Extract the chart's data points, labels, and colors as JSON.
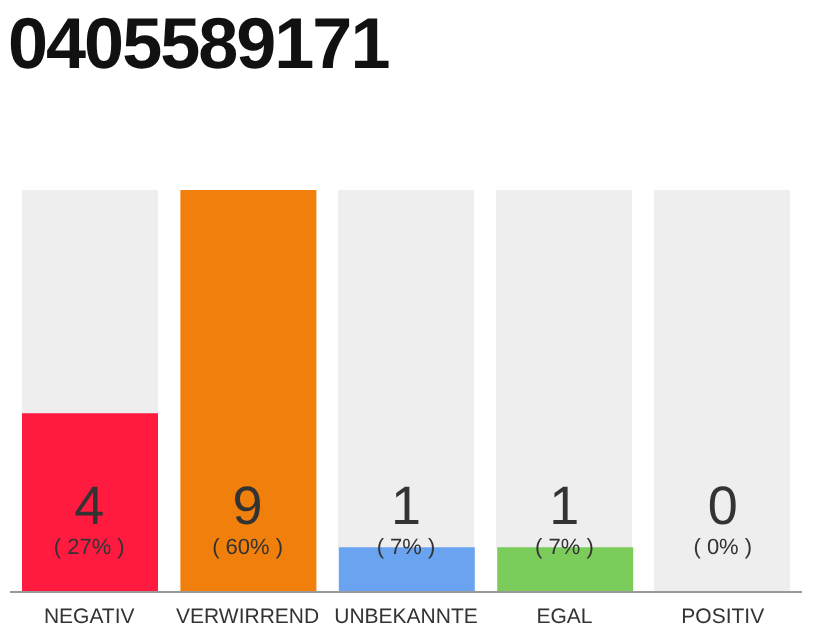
{
  "chart_data": {
    "type": "bar",
    "title": "0405589171",
    "categories": [
      "NEGATIV",
      "VERWIRREND",
      "UNBEKANNTE",
      "EGAL",
      "POSITIV"
    ],
    "values": [
      4,
      9,
      1,
      1,
      0
    ],
    "colors": [
      "#ff1a40",
      "#f07f0c",
      "#6aa3f0",
      "#7ccc5c",
      "#7ccc5c"
    ],
    "data_labels": true,
    "annotations": [
      "( 27% )",
      "( 60% )",
      "( 7% )",
      "( 7% )",
      "( 0% )"
    ]
  }
}
